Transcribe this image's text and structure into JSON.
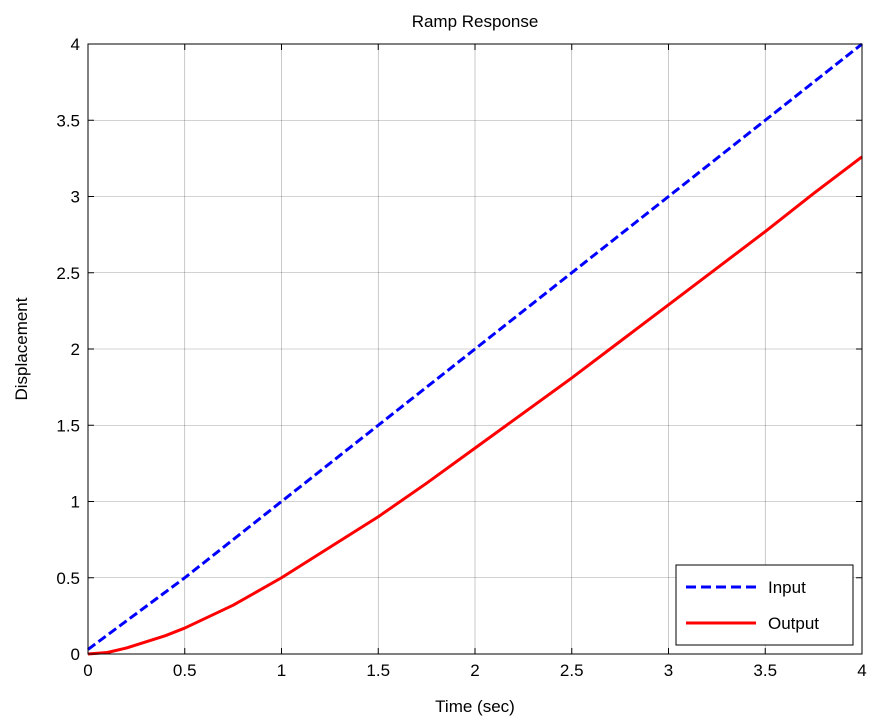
{
  "chart_data": {
    "type": "line",
    "title": "Ramp Response",
    "xlabel": "Time (sec)",
    "ylabel": "Displacement",
    "xlim": [
      0,
      4
    ],
    "ylim": [
      0,
      4
    ],
    "xticks": [
      0,
      0.5,
      1,
      1.5,
      2,
      2.5,
      3,
      3.5,
      4
    ],
    "xtick_labels": [
      "0",
      "0.5",
      "1",
      "1.5",
      "2",
      "2.5",
      "3",
      "3.5",
      "4"
    ],
    "yticks": [
      0,
      0.5,
      1,
      1.5,
      2,
      2.5,
      3,
      3.5,
      4
    ],
    "ytick_labels": [
      "0",
      "0.5",
      "1",
      "1.5",
      "2",
      "2.5",
      "3",
      "3.5",
      "4"
    ],
    "grid": true,
    "legend_position": "bottom-right",
    "series": [
      {
        "name": "Input",
        "color": "#0000ff",
        "style": "dashed",
        "x": [
          0,
          0.5,
          1,
          1.5,
          2,
          2.5,
          3,
          3.5,
          4
        ],
        "y": [
          0.03,
          0.5,
          1.0,
          1.5,
          2.0,
          2.5,
          3.0,
          3.5,
          4.0
        ]
      },
      {
        "name": "Output",
        "color": "#ff0000",
        "style": "solid",
        "x": [
          0,
          0.1,
          0.2,
          0.3,
          0.4,
          0.5,
          0.75,
          1,
          1.25,
          1.5,
          1.75,
          2,
          2.25,
          2.5,
          2.75,
          3,
          3.25,
          3.5,
          3.75,
          4
        ],
        "y": [
          0,
          0.01,
          0.04,
          0.08,
          0.12,
          0.17,
          0.32,
          0.5,
          0.7,
          0.9,
          1.12,
          1.35,
          1.58,
          1.81,
          2.05,
          2.29,
          2.53,
          2.77,
          3.02,
          3.26
        ]
      }
    ]
  }
}
